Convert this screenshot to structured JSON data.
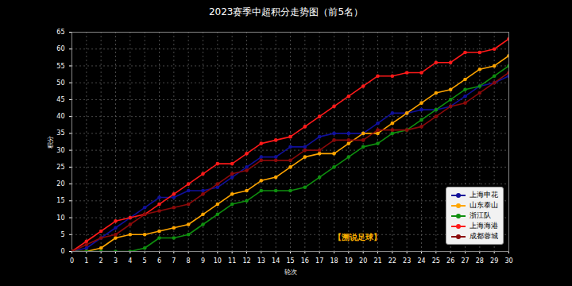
{
  "chart_data": {
    "type": "line",
    "title": "2023赛季中超积分走势图（前5名）",
    "x_label": "轮次",
    "y_label": "积分",
    "x": [
      0,
      1,
      2,
      3,
      4,
      5,
      6,
      7,
      8,
      9,
      10,
      11,
      12,
      13,
      14,
      15,
      16,
      17,
      18,
      19,
      20,
      21,
      22,
      23,
      24,
      25,
      26,
      27,
      28,
      29,
      30
    ],
    "series": [
      {
        "name": "上海申花",
        "color": "#10109a",
        "values": [
          0,
          1,
          4,
          7,
          10,
          13,
          16,
          16,
          18,
          18,
          19,
          22,
          25,
          28,
          28,
          31,
          31,
          34,
          35,
          35,
          35,
          38,
          41,
          41,
          42,
          42,
          43,
          46,
          49,
          50,
          52
        ]
      },
      {
        "name": "山东泰山",
        "color": "#ffa500",
        "values": [
          0,
          0,
          1,
          4,
          5,
          5,
          6,
          7,
          8,
          11,
          14,
          17,
          18,
          21,
          22,
          25,
          28,
          29,
          29,
          32,
          35,
          35,
          38,
          41,
          44,
          47,
          48,
          51,
          54,
          55,
          58
        ]
      },
      {
        "name": "浙江队",
        "color": "#0f8f0f",
        "values": [
          0,
          0,
          0,
          0,
          0,
          1,
          4,
          4,
          5,
          8,
          11,
          14,
          15,
          18,
          18,
          18,
          19,
          22,
          25,
          28,
          31,
          32,
          35,
          36,
          39,
          42,
          45,
          48,
          49,
          52,
          55
        ]
      },
      {
        "name": "上海海港",
        "color": "#ff1a1a",
        "values": [
          0,
          3,
          6,
          9,
          10,
          11,
          14,
          17,
          20,
          23,
          26,
          26,
          29,
          32,
          33,
          34,
          37,
          40,
          43,
          46,
          49,
          52,
          52,
          53,
          53,
          56,
          56,
          59,
          59,
          60,
          63
        ]
      },
      {
        "name": "成都蓉城",
        "color": "#8b0a0a",
        "values": [
          0,
          2,
          4,
          5,
          8,
          11,
          12,
          13,
          14,
          17,
          20,
          23,
          24,
          27,
          27,
          27,
          30,
          30,
          33,
          33,
          33,
          36,
          36,
          36,
          37,
          40,
          43,
          44,
          47,
          50,
          53
        ]
      }
    ],
    "xlim": [
      0,
      30
    ],
    "ylim": [
      0,
      65
    ],
    "xticks": [
      0,
      1,
      2,
      3,
      4,
      5,
      6,
      7,
      8,
      9,
      10,
      11,
      12,
      13,
      14,
      15,
      16,
      17,
      18,
      19,
      20,
      21,
      22,
      23,
      24,
      25,
      26,
      27,
      28,
      29,
      30
    ],
    "yticks": [
      0,
      5,
      10,
      15,
      20,
      25,
      30,
      35,
      40,
      45,
      50,
      55,
      60,
      65
    ],
    "grid": true,
    "legend": "lower right",
    "marker": "circle",
    "annotations": [
      "【溯说足球】"
    ]
  }
}
